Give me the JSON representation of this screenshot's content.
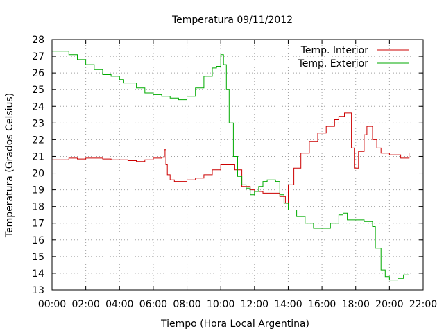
{
  "chart_data": {
    "type": "line",
    "title": "Temperatura 09/11/2012",
    "xlabel": "Tiempo (Hora Local Argentina)",
    "ylabel": "Temperatura (Grados Celsius)",
    "xlim": [
      "00:00",
      "22:00"
    ],
    "ylim": [
      13,
      28
    ],
    "grid": true,
    "legend_position": "top-right",
    "x_ticks": [
      "00:00",
      "02:00",
      "04:00",
      "06:00",
      "08:00",
      "10:00",
      "12:00",
      "14:00",
      "16:00",
      "18:00",
      "20:00",
      "22:00"
    ],
    "y_ticks": [
      "13",
      "14",
      "15",
      "16",
      "17",
      "18",
      "19",
      "20",
      "21",
      "22",
      "23",
      "24",
      "25",
      "26",
      "27",
      "28"
    ],
    "series": [
      {
        "name": "Temp. Interior",
        "color": "#cc0000",
        "points": [
          [
            "00:00",
            20.8
          ],
          [
            "00:30",
            20.8
          ],
          [
            "01:00",
            20.9
          ],
          [
            "01:30",
            20.85
          ],
          [
            "02:00",
            20.9
          ],
          [
            "02:30",
            20.9
          ],
          [
            "03:00",
            20.85
          ],
          [
            "03:30",
            20.8
          ],
          [
            "04:00",
            20.8
          ],
          [
            "04:30",
            20.75
          ],
          [
            "05:00",
            20.7
          ],
          [
            "05:30",
            20.8
          ],
          [
            "06:00",
            20.9
          ],
          [
            "06:30",
            20.95
          ],
          [
            "06:40",
            21.4
          ],
          [
            "06:45",
            20.5
          ],
          [
            "06:50",
            19.9
          ],
          [
            "07:00",
            19.6
          ],
          [
            "07:15",
            19.5
          ],
          [
            "07:45",
            19.5
          ],
          [
            "08:00",
            19.6
          ],
          [
            "08:30",
            19.7
          ],
          [
            "09:00",
            19.9
          ],
          [
            "09:30",
            20.2
          ],
          [
            "10:00",
            20.5
          ],
          [
            "10:30",
            20.5
          ],
          [
            "10:50",
            20.2
          ],
          [
            "11:15",
            19.2
          ],
          [
            "11:45",
            19.0
          ],
          [
            "12:00",
            18.9
          ],
          [
            "12:30",
            18.8
          ],
          [
            "13:00",
            18.8
          ],
          [
            "13:30",
            18.6
          ],
          [
            "13:50",
            18.2
          ],
          [
            "14:00",
            19.3
          ],
          [
            "14:20",
            20.3
          ],
          [
            "14:45",
            21.2
          ],
          [
            "15:15",
            21.9
          ],
          [
            "15:45",
            22.4
          ],
          [
            "16:15",
            22.8
          ],
          [
            "16:45",
            23.2
          ],
          [
            "17:00",
            23.4
          ],
          [
            "17:20",
            23.6
          ],
          [
            "17:30",
            23.6
          ],
          [
            "17:45",
            21.5
          ],
          [
            "17:55",
            20.3
          ],
          [
            "18:10",
            21.3
          ],
          [
            "18:30",
            22.3
          ],
          [
            "18:40",
            22.8
          ],
          [
            "18:50",
            22.8
          ],
          [
            "19:00",
            22.0
          ],
          [
            "19:15",
            21.5
          ],
          [
            "19:30",
            21.2
          ],
          [
            "20:00",
            21.1
          ],
          [
            "20:30",
            21.1
          ],
          [
            "20:40",
            20.9
          ],
          [
            "21:00",
            20.9
          ],
          [
            "21:10",
            21.2
          ]
        ]
      },
      {
        "name": "Temp. Exterior",
        "color": "#00aa00",
        "points": [
          [
            "00:00",
            27.3
          ],
          [
            "00:30",
            27.3
          ],
          [
            "01:00",
            27.1
          ],
          [
            "01:30",
            26.8
          ],
          [
            "02:00",
            26.5
          ],
          [
            "02:30",
            26.2
          ],
          [
            "03:00",
            25.9
          ],
          [
            "03:30",
            25.8
          ],
          [
            "04:00",
            25.6
          ],
          [
            "04:15",
            25.4
          ],
          [
            "04:30",
            25.4
          ],
          [
            "05:00",
            25.1
          ],
          [
            "05:30",
            24.8
          ],
          [
            "06:00",
            24.7
          ],
          [
            "06:30",
            24.6
          ],
          [
            "07:00",
            24.5
          ],
          [
            "07:30",
            24.4
          ],
          [
            "08:00",
            24.6
          ],
          [
            "08:30",
            25.1
          ],
          [
            "09:00",
            25.8
          ],
          [
            "09:30",
            26.3
          ],
          [
            "09:45",
            26.4
          ],
          [
            "10:00",
            27.1
          ],
          [
            "10:10",
            26.5
          ],
          [
            "10:20",
            25.0
          ],
          [
            "10:30",
            23.0
          ],
          [
            "10:45",
            21.0
          ],
          [
            "11:00",
            19.8
          ],
          [
            "11:15",
            19.3
          ],
          [
            "11:30",
            19.1
          ],
          [
            "11:45",
            18.7
          ],
          [
            "12:00",
            18.9
          ],
          [
            "12:15",
            19.2
          ],
          [
            "12:30",
            19.5
          ],
          [
            "12:45",
            19.6
          ],
          [
            "13:00",
            19.6
          ],
          [
            "13:15",
            19.5
          ],
          [
            "13:30",
            18.7
          ],
          [
            "13:45",
            18.2
          ],
          [
            "14:00",
            17.8
          ],
          [
            "14:30",
            17.4
          ],
          [
            "15:00",
            17.0
          ],
          [
            "15:30",
            16.7
          ],
          [
            "16:00",
            16.7
          ],
          [
            "16:30",
            17.0
          ],
          [
            "17:00",
            17.5
          ],
          [
            "17:15",
            17.6
          ],
          [
            "17:30",
            17.2
          ],
          [
            "18:00",
            17.2
          ],
          [
            "18:30",
            17.1
          ],
          [
            "19:00",
            16.8
          ],
          [
            "19:10",
            15.5
          ],
          [
            "19:30",
            14.2
          ],
          [
            "19:45",
            13.8
          ],
          [
            "20:00",
            13.6
          ],
          [
            "20:30",
            13.7
          ],
          [
            "20:50",
            13.9
          ],
          [
            "21:10",
            13.9
          ]
        ]
      }
    ]
  }
}
